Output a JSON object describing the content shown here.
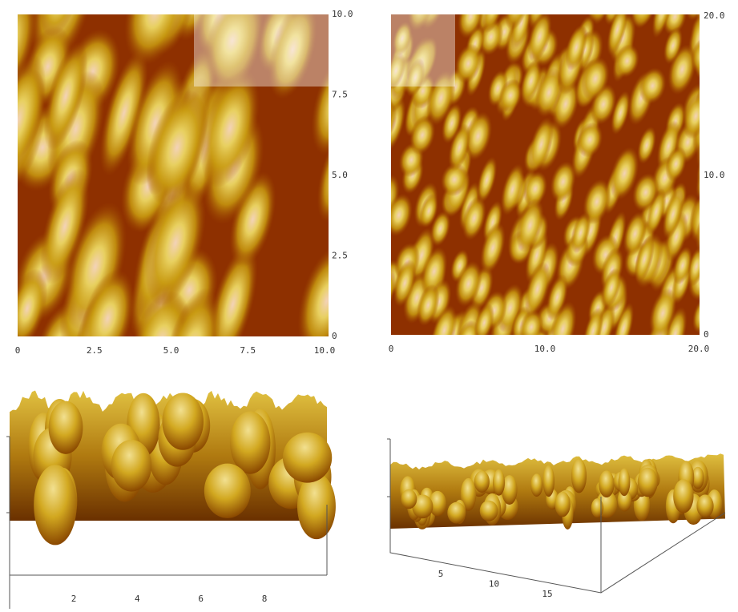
{
  "panels": [
    {
      "xticks": [
        "0",
        "2.5",
        "5.0",
        "7.5",
        "10.0"
      ],
      "yticks": [
        "0",
        "2.5",
        "5.0",
        "7.5",
        "10.0"
      ]
    },
    {
      "xticks": [
        "0",
        "10.0",
        "20.0"
      ],
      "yticks": [
        "0",
        "10.0",
        "20.0"
      ]
    },
    {
      "xticks": [
        "2",
        "4",
        "6",
        "8"
      ]
    },
    {
      "xticks": [
        "5",
        "10",
        "15"
      ]
    }
  ]
}
